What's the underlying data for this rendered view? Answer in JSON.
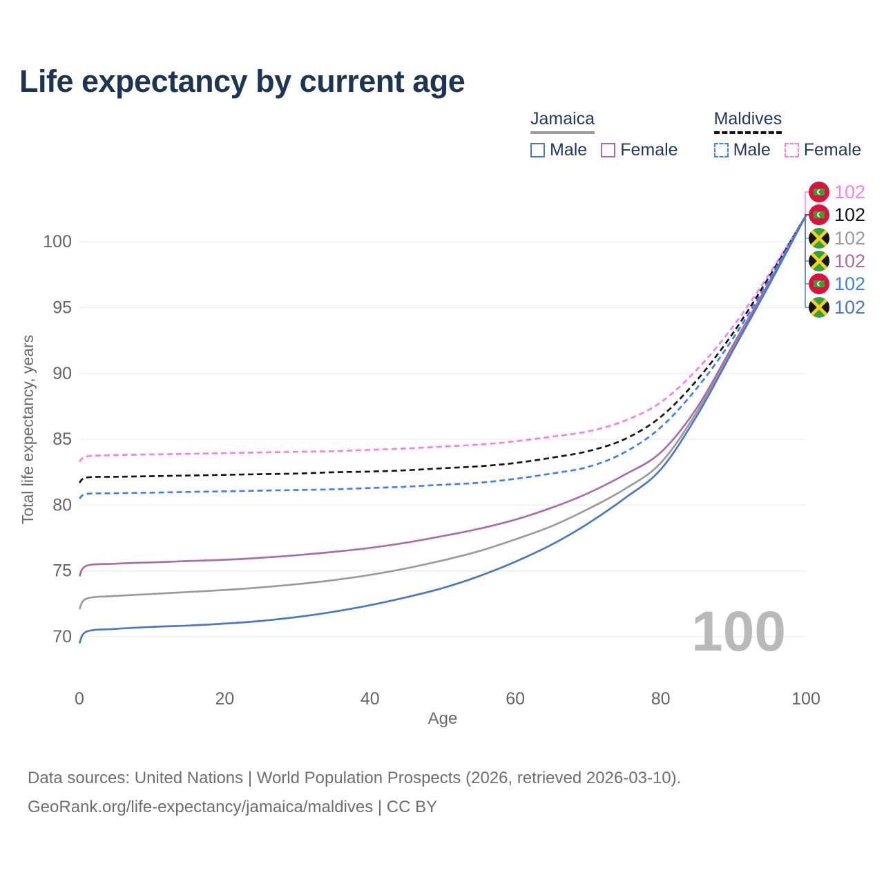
{
  "title": "Life expectancy by current age",
  "watermark": "100",
  "footer": {
    "line1": "Data sources: United Nations | World Population Prospects (2026, retrieved 2026-03-10).",
    "line2": "GeoRank.org/life-expectancy/jamaica/maldives | CC BY"
  },
  "legend": {
    "groups": [
      {
        "country": "Jamaica",
        "line_style": "solid",
        "underline_color": "#9b9b9b",
        "items": [
          {
            "label": "Male",
            "color": "#4a79c4",
            "dash": false
          },
          {
            "label": "Female",
            "color": "#ad6ba8",
            "dash": false
          }
        ]
      },
      {
        "country": "Maldives",
        "line_style": "dashed",
        "underline_color": "#151515",
        "items": [
          {
            "label": "Male",
            "color": "#3d82ee",
            "dash": true
          },
          {
            "label": "Female",
            "color": "#f97fe3",
            "dash": true
          }
        ]
      }
    ]
  },
  "chart_data": {
    "type": "line",
    "title": "Life expectancy by current age",
    "xlabel": "Age",
    "ylabel": "Total life expectancy, years",
    "xlim": [
      0,
      100
    ],
    "ylim": [
      69,
      103
    ],
    "xticks": [
      0,
      20,
      40,
      60,
      80,
      100
    ],
    "yticks": [
      70,
      75,
      80,
      85,
      90,
      95,
      100
    ],
    "grid": "horizontal",
    "legend_position": "top-right",
    "x": [
      0,
      1,
      5,
      10,
      15,
      20,
      25,
      30,
      35,
      40,
      45,
      50,
      55,
      60,
      65,
      70,
      75,
      80,
      85,
      90,
      95,
      100
    ],
    "series": [
      {
        "name": "Maldives Female",
        "country": "Maldives",
        "sex": "Female",
        "color": "#f97fe3",
        "dash": true,
        "end_label": "102",
        "values": [
          83.3,
          83.7,
          83.8,
          83.85,
          83.9,
          83.95,
          84.0,
          84.05,
          84.1,
          84.2,
          84.3,
          84.45,
          84.6,
          84.85,
          85.2,
          85.6,
          86.4,
          87.8,
          90.3,
          93.6,
          97.6,
          102
        ]
      },
      {
        "name": "Maldives",
        "country": "Maldives",
        "sex": "All",
        "color": "#151515",
        "dash": true,
        "end_label": "102",
        "values": [
          81.7,
          82.1,
          82.15,
          82.2,
          82.25,
          82.3,
          82.35,
          82.4,
          82.5,
          82.55,
          82.65,
          82.8,
          82.95,
          83.2,
          83.6,
          84.1,
          85.0,
          86.7,
          89.5,
          93.1,
          97.4,
          102
        ]
      },
      {
        "name": "Jamaica",
        "country": "Jamaica",
        "sex": "All",
        "color": "#9b9b9b",
        "dash": false,
        "end_label": "102",
        "values": [
          72.1,
          72.9,
          73.1,
          73.25,
          73.4,
          73.55,
          73.75,
          74.0,
          74.3,
          74.7,
          75.2,
          75.8,
          76.5,
          77.4,
          78.4,
          79.7,
          81.2,
          83.2,
          87.1,
          92.0,
          96.9,
          102
        ]
      },
      {
        "name": "Jamaica Female",
        "country": "Jamaica",
        "sex": "Female",
        "color": "#ad6ba8",
        "dash": false,
        "end_label": "102",
        "values": [
          74.6,
          75.4,
          75.55,
          75.65,
          75.75,
          75.85,
          76.0,
          76.2,
          76.45,
          76.75,
          77.15,
          77.65,
          78.2,
          78.9,
          79.8,
          80.9,
          82.3,
          84.0,
          87.4,
          92.2,
          97.0,
          102
        ]
      },
      {
        "name": "Maldives Male",
        "country": "Maldives",
        "sex": "Male",
        "color": "#3d82ee",
        "dash": true,
        "end_label": "102",
        "values": [
          80.5,
          80.85,
          80.9,
          80.95,
          81.0,
          81.05,
          81.1,
          81.15,
          81.2,
          81.3,
          81.4,
          81.55,
          81.7,
          82.0,
          82.4,
          82.9,
          84.0,
          85.9,
          88.9,
          92.7,
          97.2,
          102
        ]
      },
      {
        "name": "Jamaica Male",
        "country": "Jamaica",
        "sex": "Male",
        "color": "#4a79c4",
        "dash": false,
        "end_label": "102",
        "values": [
          69.5,
          70.4,
          70.6,
          70.75,
          70.85,
          71.0,
          71.2,
          71.5,
          71.9,
          72.4,
          73.0,
          73.7,
          74.6,
          75.7,
          77.0,
          78.6,
          80.5,
          82.7,
          86.8,
          91.8,
          96.8,
          102
        ]
      }
    ]
  }
}
